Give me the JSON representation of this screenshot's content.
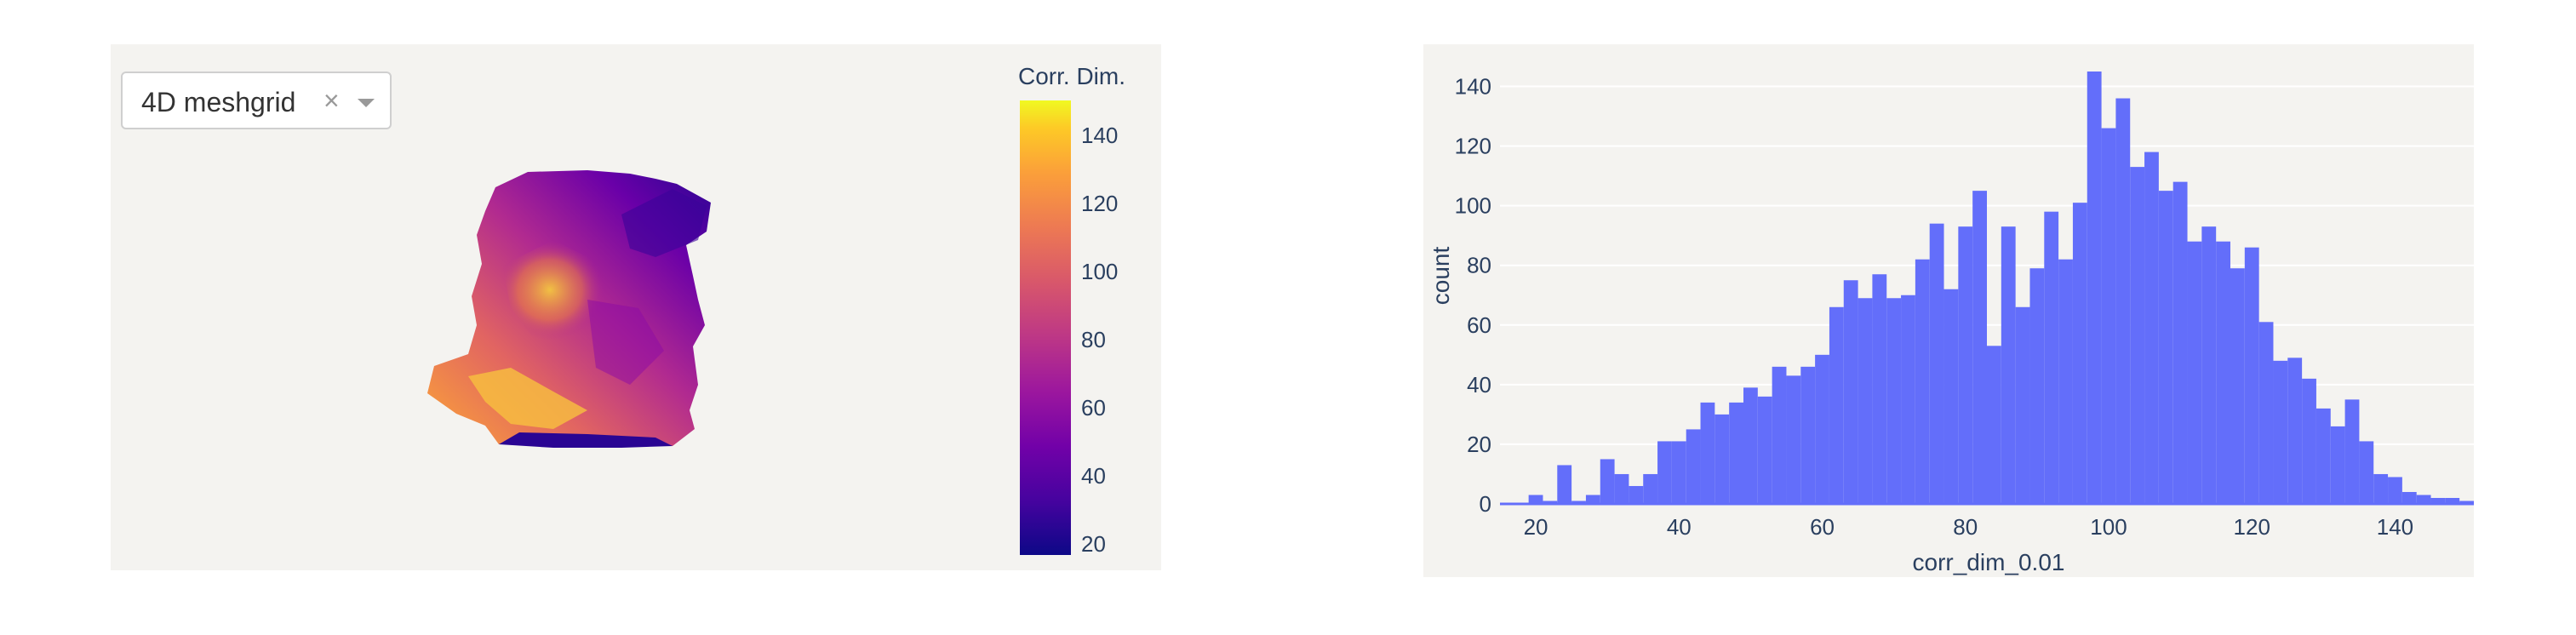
{
  "left": {
    "dropdown": {
      "value": "4D meshgrid",
      "clear_icon": "close-icon",
      "arrow_icon": "chevron-down-icon"
    },
    "colorbar": {
      "title": "Corr. Dim.",
      "ticks": [
        "140",
        "120",
        "100",
        "80",
        "60",
        "40",
        "20"
      ],
      "colorscale": "plasma"
    }
  },
  "chart_data": {
    "type": "bar",
    "title": "",
    "xlabel": "corr_dim_0.01",
    "ylabel": "count",
    "xlim": [
      15,
      151
    ],
    "ylim": [
      0,
      145
    ],
    "bar_color": "#636efa",
    "bin_width": 2,
    "x_ticks": [
      "20",
      "40",
      "60",
      "80",
      "100",
      "120",
      "140"
    ],
    "y_ticks": [
      "0",
      "20",
      "40",
      "60",
      "80",
      "100",
      "120",
      "140"
    ],
    "bins": [
      [
        16,
        0
      ],
      [
        18,
        0
      ],
      [
        20,
        3
      ],
      [
        22,
        1
      ],
      [
        24,
        13
      ],
      [
        26,
        1
      ],
      [
        28,
        3
      ],
      [
        30,
        15
      ],
      [
        32,
        10
      ],
      [
        34,
        6
      ],
      [
        36,
        10
      ],
      [
        38,
        21
      ],
      [
        40,
        21
      ],
      [
        42,
        25
      ],
      [
        44,
        34
      ],
      [
        46,
        30
      ],
      [
        48,
        34
      ],
      [
        50,
        39
      ],
      [
        52,
        36
      ],
      [
        54,
        46
      ],
      [
        56,
        43
      ],
      [
        58,
        46
      ],
      [
        60,
        50
      ],
      [
        62,
        66
      ],
      [
        64,
        75
      ],
      [
        66,
        69
      ],
      [
        68,
        77
      ],
      [
        70,
        69
      ],
      [
        72,
        70
      ],
      [
        74,
        82
      ],
      [
        76,
        94
      ],
      [
        78,
        72
      ],
      [
        80,
        93
      ],
      [
        82,
        105
      ],
      [
        84,
        53
      ],
      [
        86,
        93
      ],
      [
        88,
        66
      ],
      [
        90,
        79
      ],
      [
        92,
        98
      ],
      [
        94,
        82
      ],
      [
        96,
        101
      ],
      [
        98,
        145
      ],
      [
        100,
        126
      ],
      [
        102,
        136
      ],
      [
        104,
        113
      ],
      [
        106,
        118
      ],
      [
        108,
        105
      ],
      [
        110,
        108
      ],
      [
        112,
        88
      ],
      [
        114,
        93
      ],
      [
        116,
        88
      ],
      [
        118,
        79
      ],
      [
        120,
        86
      ],
      [
        122,
        61
      ],
      [
        124,
        48
      ],
      [
        126,
        49
      ],
      [
        128,
        42
      ],
      [
        130,
        32
      ],
      [
        132,
        26
      ],
      [
        134,
        35
      ],
      [
        136,
        21
      ],
      [
        138,
        10
      ],
      [
        140,
        9
      ],
      [
        142,
        4
      ],
      [
        144,
        3
      ],
      [
        146,
        2
      ],
      [
        148,
        2
      ],
      [
        150,
        1
      ]
    ]
  }
}
